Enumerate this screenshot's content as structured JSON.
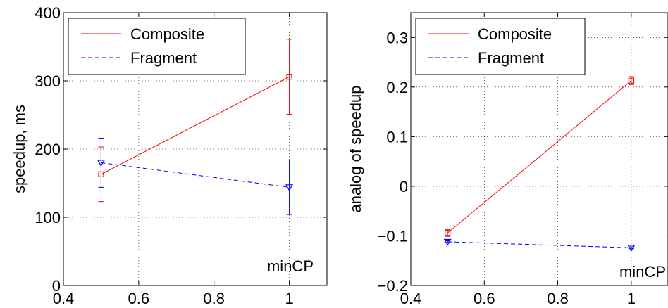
{
  "chart_data": [
    {
      "type": "line",
      "xlabel": "",
      "ylabel": "speedup, ms",
      "xlim": [
        0.4,
        1.1
      ],
      "ylim": [
        0,
        400
      ],
      "xticks": [
        0.4,
        0.6,
        0.8,
        1
      ],
      "xtick_labels": [
        "0.4",
        "0.6",
        "0.8",
        "1"
      ],
      "yticks": [
        0,
        100,
        200,
        300,
        400
      ],
      "ytick_labels": [
        "0",
        "100",
        "200",
        "300",
        "400"
      ],
      "grid": true,
      "legend_position": "top-left",
      "annotation": "minCP",
      "series": [
        {
          "name": "Composite",
          "color": "#ff0000",
          "line_style": "solid",
          "marker": "square",
          "x": [
            0.5,
            1
          ],
          "y": [
            163,
            306
          ],
          "error_low": [
            123,
            251
          ],
          "error_high": [
            203,
            361
          ]
        },
        {
          "name": "Fragment",
          "color": "#0000ff",
          "line_style": "dashed",
          "marker": "triangle-down",
          "x": [
            0.5,
            1
          ],
          "y": [
            180,
            144
          ],
          "error_low": [
            144,
            104
          ],
          "error_high": [
            216,
            184
          ]
        }
      ]
    },
    {
      "type": "line",
      "xlabel": "",
      "ylabel": "analog of speedup",
      "xlim": [
        0.4,
        1.1
      ],
      "ylim": [
        -0.2,
        0.35
      ],
      "xticks": [
        0.4,
        0.6,
        0.8,
        1
      ],
      "xtick_labels": [
        "0.4",
        "0.6",
        "0.8",
        "1"
      ],
      "yticks": [
        -0.2,
        -0.1,
        0,
        0.1,
        0.2,
        0.3
      ],
      "ytick_labels": [
        "−0.2",
        "−0.1",
        "0",
        "0.1",
        "0.2",
        "0.3"
      ],
      "grid": true,
      "legend_position": "top-left",
      "annotation": "minCP",
      "series": [
        {
          "name": "Composite",
          "color": "#ff0000",
          "line_style": "solid",
          "marker": "square",
          "x": [
            0.5,
            1
          ],
          "y": [
            -0.094,
            0.213
          ],
          "error_low": [
            -0.101,
            0.205
          ],
          "error_high": [
            -0.087,
            0.221
          ]
        },
        {
          "name": "Fragment",
          "color": "#0000ff",
          "line_style": "dashed",
          "marker": "triangle-down",
          "x": [
            0.5,
            1
          ],
          "y": [
            -0.112,
            -0.124
          ],
          "error_low": [
            -0.114,
            -0.126
          ],
          "error_high": [
            -0.11,
            -0.122
          ]
        }
      ]
    }
  ]
}
